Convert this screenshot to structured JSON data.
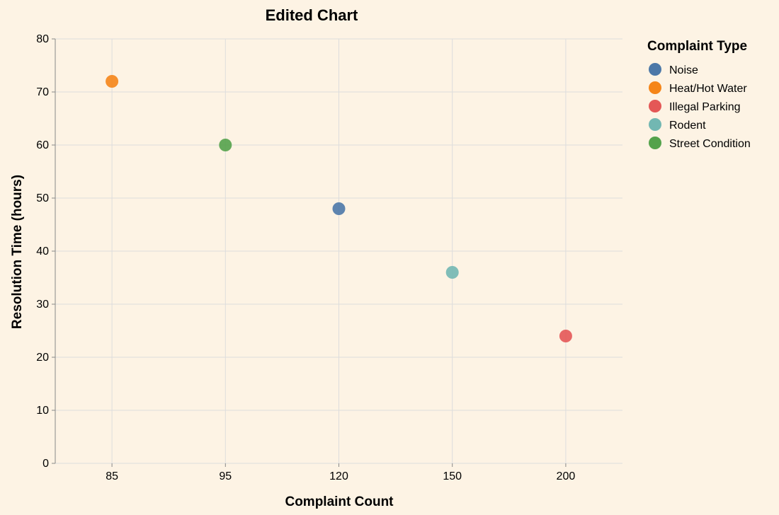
{
  "chart_data": {
    "type": "scatter",
    "title": "Edited Chart",
    "xlabel": "Complaint Count",
    "ylabel": "Resolution Time (hours)",
    "x_scale": "point",
    "x_categories": [
      85,
      95,
      120,
      150,
      200
    ],
    "ylim": [
      0,
      80
    ],
    "y_ticks": [
      0,
      10,
      20,
      30,
      40,
      50,
      60,
      70,
      80
    ],
    "grid": true,
    "legend": {
      "title": "Complaint Type",
      "placement": "right"
    },
    "series": [
      {
        "name": "Noise",
        "color": "#4c78a8",
        "points": [
          {
            "x": 120,
            "y": 48
          }
        ]
      },
      {
        "name": "Heat/Hot Water",
        "color": "#f58518",
        "points": [
          {
            "x": 85,
            "y": 72
          }
        ]
      },
      {
        "name": "Illegal Parking",
        "color": "#e45756",
        "points": [
          {
            "x": 200,
            "y": 24
          }
        ]
      },
      {
        "name": "Rodent",
        "color": "#72b7b2",
        "points": [
          {
            "x": 150,
            "y": 36
          }
        ]
      },
      {
        "name": "Street Condition",
        "color": "#54a24b",
        "points": [
          {
            "x": 95,
            "y": 60
          }
        ]
      }
    ]
  }
}
